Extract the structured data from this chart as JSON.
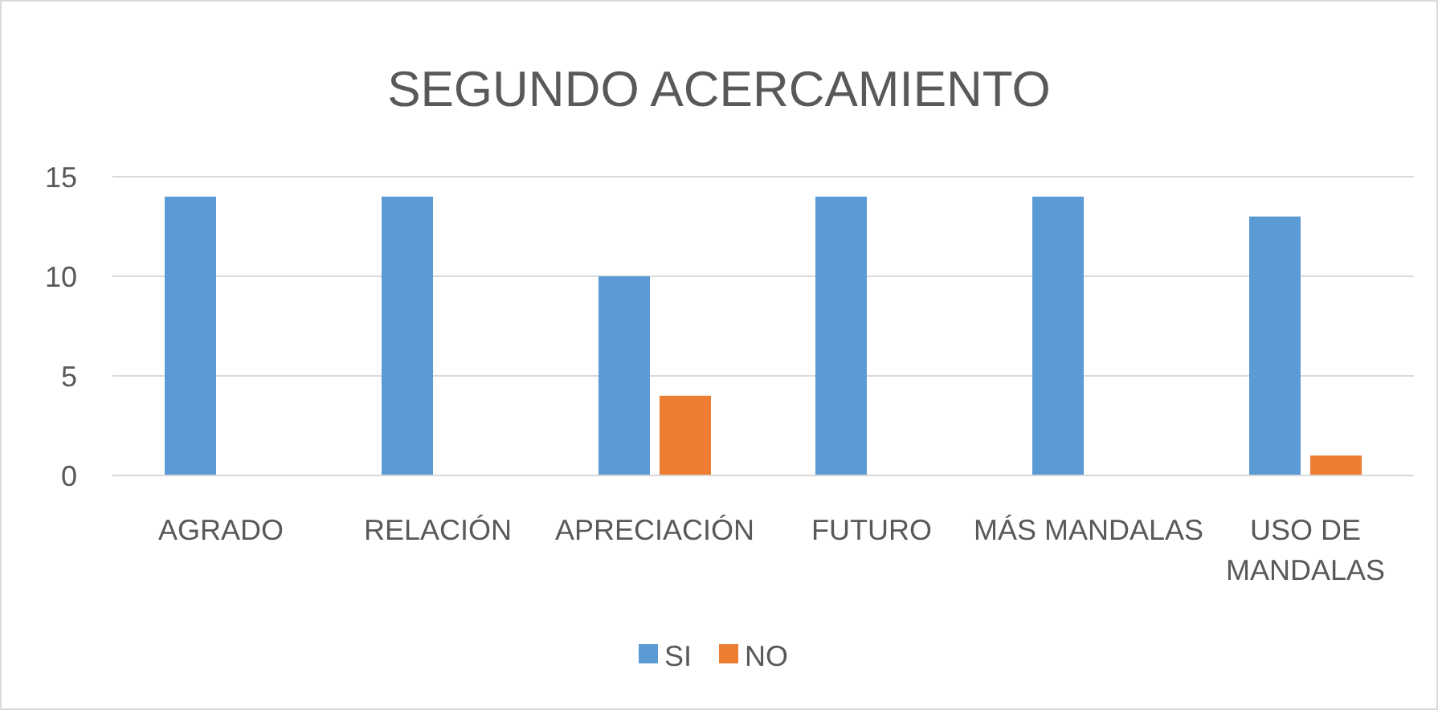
{
  "chart_data": {
    "type": "bar",
    "title": "SEGUNDO ACERCAMIENTO",
    "categories": [
      "AGRADO",
      "RELACIÓN",
      "APRECIACIÓN",
      "FUTURO",
      "MÁS MANDALAS",
      "USO DE MANDALAS"
    ],
    "series": [
      {
        "name": "SI",
        "color": "#5b9bd5",
        "values": [
          14,
          14,
          10,
          14,
          14,
          13
        ]
      },
      {
        "name": "NO",
        "color": "#ed7d31",
        "values": [
          0,
          0,
          4,
          0,
          0,
          1
        ]
      }
    ],
    "ylim": [
      0,
      15
    ],
    "yticks": [
      0,
      5,
      10,
      15
    ],
    "grid": "y",
    "legend": "bottom"
  }
}
